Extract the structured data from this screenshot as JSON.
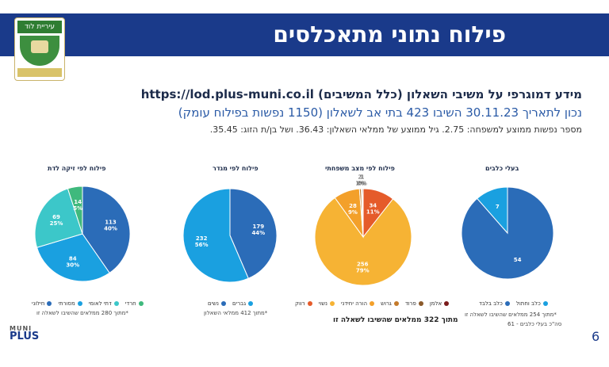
{
  "header": {
    "title": "פילוח נתוני מתאכלסים"
  },
  "logo": {
    "top_text": "עיריית לוד",
    "bottom_text": ""
  },
  "info": {
    "line1": "מידע דמוגרפי על משיבי השאלון (כלל המשיבים) https://lod.plus-muni.co.il",
    "line2": "נכון לתאריך 30.11.23 השיבו 423 בתי אב לשאלון (1150 נפשות בפילוח עומק)",
    "line3": "מספר נפשות ממוצע למשפחה: 2.75. גיל ממוצע של ממלאי השאלון: 36.43. ושל בן/ת הזוג: 35.45."
  },
  "colors": {
    "header_bg": "#1a3a8a",
    "dark_blue": "#2b6cb8",
    "blue": "#1aa0e0",
    "teal": "#3cc7c9",
    "green": "#3fb97d",
    "orange": "#f6b334",
    "red_orange": "#e55b2a",
    "light_orange": "#f3a02a"
  },
  "chart_data": [
    {
      "type": "pie",
      "title": "פילוח לפי זיקה לדת",
      "slices": [
        {
          "name": "חילוני",
          "value": 113,
          "label": "113\n40%",
          "color": "#2b6cb8"
        },
        {
          "name": "מסורתי",
          "value": 84,
          "label": "84\n30%",
          "color": "#1aa0e0"
        },
        {
          "name": "דתי לאומי",
          "value": 69,
          "label": "69\n25%",
          "color": "#3cc7c9"
        },
        {
          "name": "חרדי",
          "value": 14,
          "label": "14\n5%",
          "color": "#3fb97d"
        }
      ],
      "note": "*מתוך 280 ממלאים שהשיבו לשאלה זו"
    },
    {
      "type": "pie",
      "title": "פילוח לפי מגדר",
      "slices": [
        {
          "name": "נשים",
          "value": 179,
          "label": "179\n44%",
          "color": "#2b6cb8"
        },
        {
          "name": "גברים",
          "value": 232,
          "label": "232\n56%",
          "color": "#1aa0e0"
        }
      ],
      "note": "*מתוך 412 ממלאי השאלון"
    },
    {
      "type": "pie",
      "title": "פילוח לפי מצב משפחתי",
      "slices": [
        {
          "name": "רווק",
          "value": 34,
          "label": "34\n11%",
          "color": "#e55b2a"
        },
        {
          "name": "נשוי",
          "value": 256,
          "label": "256\n79%",
          "color": "#f6b334"
        },
        {
          "name": "הורה יחידני",
          "value": 28,
          "label": "28\n9%",
          "color": "#f3a02a"
        },
        {
          "name": "גרוש",
          "value": 2,
          "label": "2\n1%",
          "color": "#c47a2b"
        },
        {
          "name": "פרוד",
          "value": 1,
          "label": "1\n0%",
          "color": "#8b5a2b"
        },
        {
          "name": "אלמן",
          "value": 1,
          "label": "1\n0%",
          "color": "#7a1c1c"
        }
      ],
      "note": "מתוך 322 ממלאים שהשיבו לשאלה זו"
    },
    {
      "type": "pie",
      "title": "בעלי כלבים",
      "slices": [
        {
          "name": "כלב בלבד",
          "value": 54,
          "label": "54",
          "color": "#2b6cb8"
        },
        {
          "name": "כלב וחתול",
          "value": 7,
          "label": "7",
          "color": "#1aa0e0"
        }
      ],
      "note": "*מתוך 254 ממלאים שהשיבו לשאלה זו",
      "note2": "סה\"כ בעלי כלבים - 61"
    }
  ],
  "footer": {
    "page_number": "6",
    "muni_top": "MUNI",
    "muni_mid": "PLUS",
    "muni_bottom": ""
  }
}
